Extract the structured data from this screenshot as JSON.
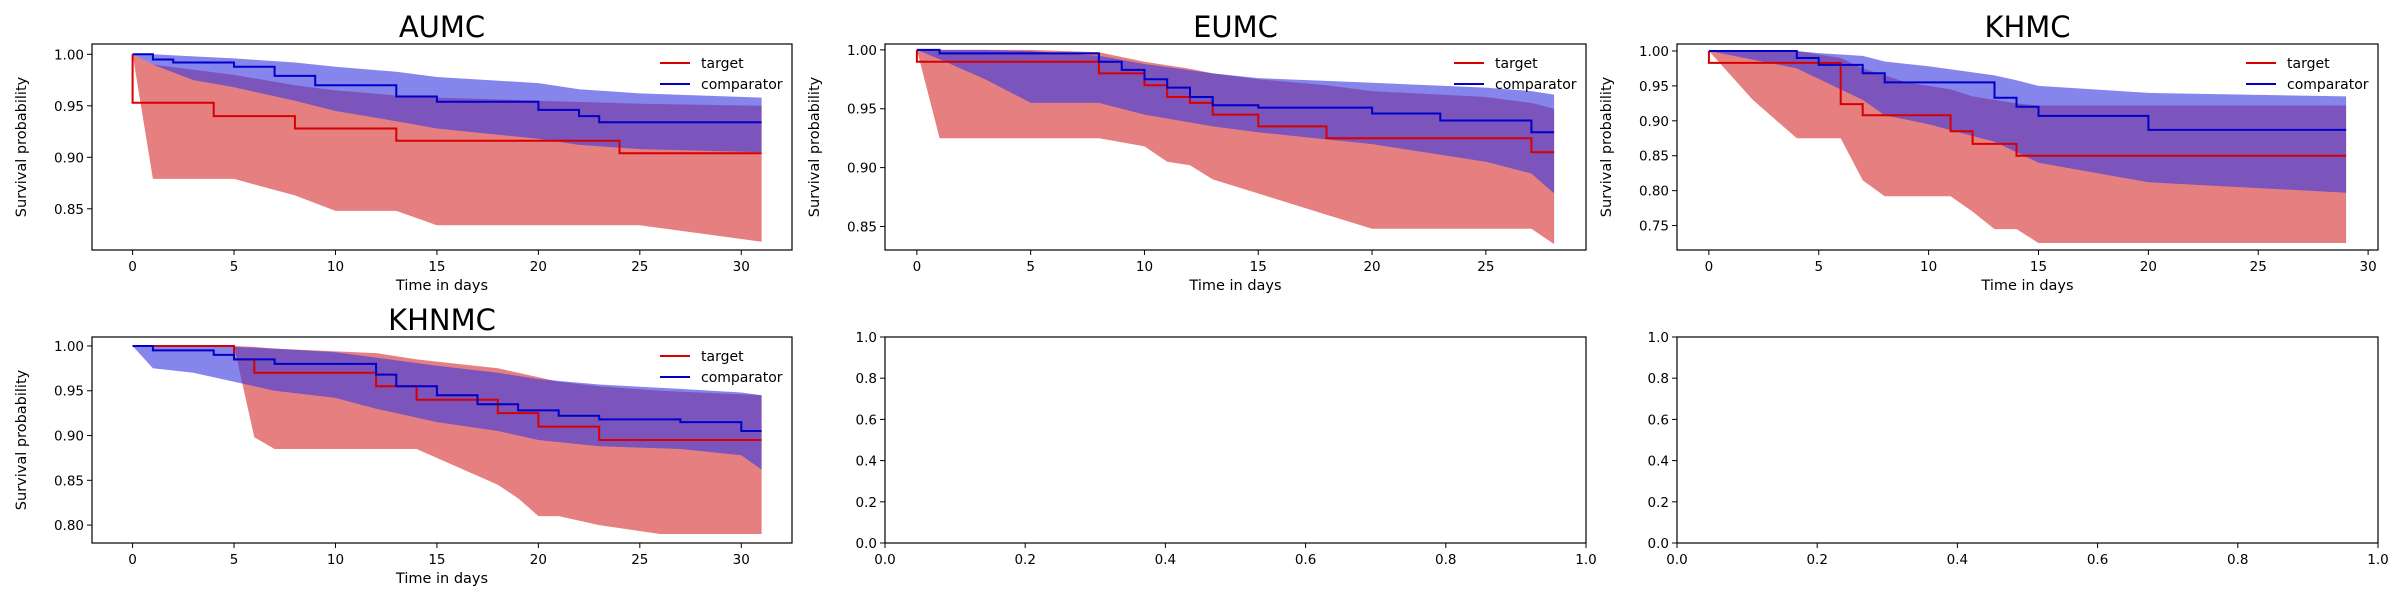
{
  "figure": {
    "legend_labels": {
      "target": "target",
      "comparator": "comparator"
    },
    "colors": {
      "target_line": "#d60000",
      "comparator_line": "#0000c8",
      "target_band": "#e06464",
      "comparator_band": "#3a3ae0",
      "overlap_band": "#6a2aa0"
    }
  },
  "chart_data": [
    {
      "type": "line",
      "title": "AUMC",
      "xlabel": "Time in days",
      "ylabel": "Survival probability",
      "xlim": [
        -2,
        32.5
      ],
      "ylim": [
        0.81,
        1.01
      ],
      "xticks": [
        0,
        5,
        10,
        15,
        20,
        25,
        30
      ],
      "yticks": [
        0.85,
        0.9,
        0.95,
        1.0
      ],
      "xtick_labels": [
        "0",
        "5",
        "10",
        "15",
        "20",
        "25",
        "30"
      ],
      "ytick_labels": [
        "0.85",
        "0.90",
        "0.95",
        "1.00"
      ],
      "legend": "top-right",
      "grid": false,
      "series": [
        {
          "name": "target",
          "key": "target",
          "step_x": [
            0,
            0,
            4,
            8,
            13,
            24,
            31
          ],
          "step_y": [
            1.0,
            0.953,
            0.94,
            0.928,
            0.916,
            0.904,
            0.904
          ],
          "ci_x": [
            0,
            1,
            5,
            8,
            10,
            13,
            15,
            20,
            25,
            31
          ],
          "ci_lower": [
            1.0,
            0.879,
            0.879,
            0.863,
            0.848,
            0.848,
            0.834,
            0.834,
            0.834,
            0.818
          ],
          "ci_upper": [
            1.0,
            0.99,
            0.98,
            0.97,
            0.965,
            0.96,
            0.958,
            0.955,
            0.952,
            0.95
          ]
        },
        {
          "name": "comparator",
          "key": "comparator",
          "step_x": [
            0,
            1,
            2,
            5,
            7,
            9,
            13,
            15,
            20,
            22,
            23,
            31
          ],
          "step_y": [
            1.0,
            0.995,
            0.992,
            0.988,
            0.979,
            0.97,
            0.959,
            0.954,
            0.946,
            0.94,
            0.934,
            0.934
          ],
          "ci_x": [
            0,
            1,
            3,
            5,
            8,
            10,
            13,
            15,
            20,
            22,
            25,
            31
          ],
          "ci_lower": [
            1.0,
            0.99,
            0.975,
            0.968,
            0.955,
            0.945,
            0.935,
            0.928,
            0.918,
            0.912,
            0.908,
            0.905
          ],
          "ci_upper": [
            1.0,
            1.0,
            0.998,
            0.996,
            0.992,
            0.988,
            0.983,
            0.978,
            0.972,
            0.966,
            0.962,
            0.958
          ]
        }
      ]
    },
    {
      "type": "line",
      "title": "EUMC",
      "xlabel": "Time in days",
      "ylabel": "Survival probability",
      "xlim": [
        -1.4,
        29.4
      ],
      "ylim": [
        0.83,
        1.005
      ],
      "xticks": [
        0,
        5,
        10,
        15,
        20,
        25
      ],
      "yticks": [
        0.85,
        0.9,
        0.95,
        1.0
      ],
      "xtick_labels": [
        "0",
        "5",
        "10",
        "15",
        "20",
        "25"
      ],
      "ytick_labels": [
        "0.85",
        "0.90",
        "0.95",
        "1.00"
      ],
      "legend": "top-right",
      "grid": false,
      "series": [
        {
          "name": "target",
          "key": "target",
          "step_x": [
            0,
            0,
            8,
            10,
            11,
            12,
            13,
            15,
            18,
            27,
            28
          ],
          "step_y": [
            1.0,
            0.99,
            0.98,
            0.97,
            0.96,
            0.955,
            0.945,
            0.935,
            0.925,
            0.913,
            0.913
          ],
          "ci_x": [
            0,
            1,
            5,
            8,
            10,
            11,
            12,
            13,
            15,
            18,
            20,
            25,
            27,
            28
          ],
          "ci_lower": [
            1.0,
            0.925,
            0.925,
            0.925,
            0.918,
            0.905,
            0.902,
            0.89,
            0.878,
            0.86,
            0.848,
            0.848,
            0.848,
            0.835
          ],
          "ci_upper": [
            1.0,
            1.0,
            1.0,
            0.998,
            0.99,
            0.987,
            0.984,
            0.98,
            0.975,
            0.97,
            0.965,
            0.96,
            0.955,
            0.95
          ]
        },
        {
          "name": "comparator",
          "key": "comparator",
          "step_x": [
            0,
            1,
            8,
            9,
            10,
            11,
            12,
            13,
            15,
            20,
            23,
            27,
            28
          ],
          "step_y": [
            1.0,
            0.997,
            0.99,
            0.983,
            0.975,
            0.968,
            0.96,
            0.953,
            0.951,
            0.946,
            0.94,
            0.93,
            0.93
          ],
          "ci_x": [
            0,
            1,
            3,
            5,
            8,
            10,
            13,
            15,
            20,
            25,
            27,
            28
          ],
          "ci_lower": [
            1.0,
            0.992,
            0.975,
            0.955,
            0.955,
            0.945,
            0.935,
            0.93,
            0.92,
            0.905,
            0.895,
            0.878
          ],
          "ci_upper": [
            1.0,
            1.0,
            1.0,
            0.999,
            0.995,
            0.988,
            0.98,
            0.976,
            0.972,
            0.968,
            0.965,
            0.962
          ]
        }
      ]
    },
    {
      "type": "line",
      "title": "KHMC",
      "xlabel": "Time in days",
      "ylabel": "Survival probability",
      "xlim": [
        -1.45,
        30.45
      ],
      "ylim": [
        0.715,
        1.01
      ],
      "xticks": [
        0,
        5,
        10,
        15,
        20,
        25,
        30
      ],
      "yticks": [
        0.75,
        0.8,
        0.85,
        0.9,
        0.95,
        1.0
      ],
      "xtick_labels": [
        "0",
        "5",
        "10",
        "15",
        "20",
        "25",
        "30"
      ],
      "ytick_labels": [
        "0.75",
        "0.80",
        "0.85",
        "0.90",
        "0.95",
        "1.00"
      ],
      "legend": "top-right",
      "grid": false,
      "series": [
        {
          "name": "target",
          "key": "target",
          "step_x": [
            0,
            0,
            6,
            7,
            11,
            12,
            13,
            14,
            29
          ],
          "step_y": [
            1.0,
            0.983,
            0.924,
            0.908,
            0.885,
            0.867,
            0.867,
            0.85,
            0.85
          ],
          "ci_x": [
            0,
            2,
            4,
            6,
            7,
            8,
            9,
            11,
            12,
            13,
            14,
            15,
            20,
            29
          ],
          "ci_lower": [
            1.0,
            0.93,
            0.875,
            0.875,
            0.815,
            0.792,
            0.792,
            0.792,
            0.77,
            0.745,
            0.745,
            0.725,
            0.725,
            0.725
          ],
          "ci_upper": [
            1.0,
            1.0,
            1.0,
            0.99,
            0.975,
            0.965,
            0.955,
            0.945,
            0.935,
            0.93,
            0.925,
            0.922,
            0.922,
            0.922
          ]
        },
        {
          "name": "comparator",
          "key": "comparator",
          "step_x": [
            0,
            4,
            5,
            7,
            8,
            13,
            14,
            15,
            20,
            29
          ],
          "step_y": [
            1.0,
            0.99,
            0.98,
            0.968,
            0.955,
            0.933,
            0.92,
            0.907,
            0.887,
            0.887
          ],
          "ci_x": [
            0,
            4,
            5,
            7,
            8,
            10,
            13,
            14,
            15,
            20,
            29
          ],
          "ci_lower": [
            1.0,
            0.975,
            0.96,
            0.93,
            0.908,
            0.895,
            0.87,
            0.855,
            0.84,
            0.812,
            0.797
          ],
          "ci_upper": [
            1.0,
            1.0,
            0.997,
            0.993,
            0.985,
            0.978,
            0.965,
            0.958,
            0.95,
            0.94,
            0.935
          ]
        }
      ]
    },
    {
      "type": "line",
      "title": "KHNMC",
      "xlabel": "Time in days",
      "ylabel": "Survival probability",
      "xlim": [
        -2,
        32.5
      ],
      "ylim": [
        0.78,
        1.01
      ],
      "xticks": [
        0,
        5,
        10,
        15,
        20,
        25,
        30
      ],
      "yticks": [
        0.8,
        0.85,
        0.9,
        0.95,
        1.0
      ],
      "xtick_labels": [
        "0",
        "5",
        "10",
        "15",
        "20",
        "25",
        "30"
      ],
      "ytick_labels": [
        "0.80",
        "0.85",
        "0.90",
        "0.95",
        "1.00"
      ],
      "legend": "top-right",
      "grid": false,
      "series": [
        {
          "name": "target",
          "key": "target",
          "step_x": [
            0,
            5,
            6,
            7,
            12,
            14,
            18,
            20,
            23,
            31
          ],
          "step_y": [
            1.0,
            0.985,
            0.97,
            0.97,
            0.955,
            0.94,
            0.925,
            0.91,
            0.895,
            0.895
          ],
          "ci_x": [
            0,
            5,
            6,
            7,
            12,
            14,
            16,
            18,
            19,
            20,
            21,
            23,
            26,
            31
          ],
          "ci_lower": [
            1.0,
            1.0,
            0.898,
            0.885,
            0.885,
            0.885,
            0.865,
            0.845,
            0.83,
            0.81,
            0.81,
            0.8,
            0.79,
            0.79
          ],
          "ci_upper": [
            1.0,
            1.0,
            0.999,
            0.997,
            0.992,
            0.985,
            0.98,
            0.975,
            0.97,
            0.965,
            0.96,
            0.955,
            0.95,
            0.945
          ]
        },
        {
          "name": "comparator",
          "key": "comparator",
          "step_x": [
            0,
            1,
            4,
            5,
            7,
            12,
            13,
            15,
            17,
            19,
            21,
            23,
            27,
            30,
            31
          ],
          "step_y": [
            1.0,
            0.995,
            0.99,
            0.985,
            0.98,
            0.968,
            0.955,
            0.945,
            0.935,
            0.928,
            0.922,
            0.918,
            0.915,
            0.905,
            0.905
          ],
          "ci_x": [
            0,
            1,
            3,
            5,
            7,
            10,
            12,
            15,
            18,
            20,
            23,
            27,
            30,
            31
          ],
          "ci_lower": [
            1.0,
            0.975,
            0.97,
            0.96,
            0.95,
            0.942,
            0.93,
            0.915,
            0.905,
            0.895,
            0.888,
            0.885,
            0.878,
            0.862
          ],
          "ci_upper": [
            1.0,
            1.0,
            1.0,
            0.999,
            0.997,
            0.993,
            0.987,
            0.978,
            0.97,
            0.963,
            0.957,
            0.952,
            0.948,
            0.945
          ]
        }
      ]
    },
    {
      "type": "line",
      "title": "",
      "xlabel": "",
      "ylabel": "",
      "xlim": [
        0,
        1
      ],
      "ylim": [
        0,
        1
      ],
      "xticks": [
        0,
        0.2,
        0.4,
        0.6,
        0.8,
        1.0
      ],
      "yticks": [
        0,
        0.2,
        0.4,
        0.6,
        0.8,
        1.0
      ],
      "xtick_labels": [
        "0.0",
        "0.2",
        "0.4",
        "0.6",
        "0.8",
        "1.0"
      ],
      "ytick_labels": [
        "0.0",
        "0.2",
        "0.4",
        "0.6",
        "0.8",
        "1.0"
      ],
      "grid": false,
      "series": []
    },
    {
      "type": "line",
      "title": "",
      "xlabel": "",
      "ylabel": "",
      "xlim": [
        0,
        1
      ],
      "ylim": [
        0,
        1
      ],
      "xticks": [
        0,
        0.2,
        0.4,
        0.6,
        0.8,
        1.0
      ],
      "yticks": [
        0,
        0.2,
        0.4,
        0.6,
        0.8,
        1.0
      ],
      "xtick_labels": [
        "0.0",
        "0.2",
        "0.4",
        "0.6",
        "0.8",
        "1.0"
      ],
      "ytick_labels": [
        "0.0",
        "0.2",
        "0.4",
        "0.6",
        "0.8",
        "1.0"
      ],
      "grid": false,
      "series": []
    }
  ]
}
